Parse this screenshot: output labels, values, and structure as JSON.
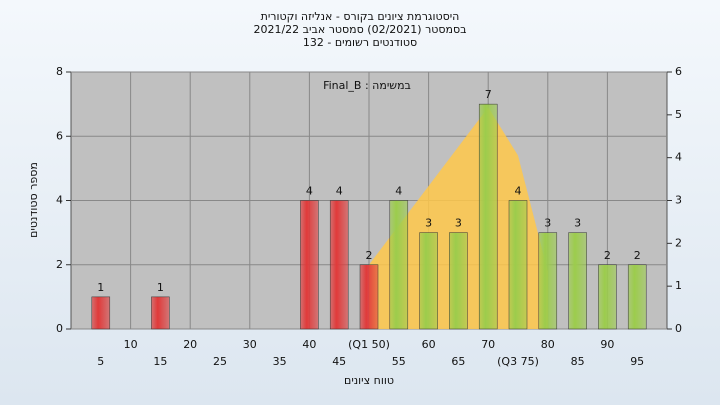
{
  "chart_data": {
    "type": "bar",
    "title": "היסטוגרמת ציונים בקורס - אנליזה וקטורית",
    "subtitle": "בסמסטר  (02/2021)  סמסטר אביב 2021/22",
    "subtitle2": "סטודנטים רשומים - 132",
    "annotation": "Final_B : במשימה",
    "x_label": "טווח ציונים",
    "y_label": "מספר סטודנטים",
    "categories": [
      "5",
      "10",
      "15",
      "20",
      "25",
      "30",
      "35",
      "40",
      "45",
      "(Q1 50)",
      "55",
      "60",
      "65",
      "70",
      "(Q3 75)",
      "80",
      "85",
      "90",
      "95"
    ],
    "values": [
      1,
      0,
      1,
      0,
      0,
      0,
      0,
      4,
      4,
      2,
      4,
      3,
      3,
      7,
      4,
      3,
      3,
      2,
      2
    ],
    "colors": [
      "#e03a3a",
      "#e03a3a",
      "#e03a3a",
      "#e03a3a",
      "#e03a3a",
      "#e03a3a",
      "#e03a3a",
      "#e03a3a",
      "#e03a3a",
      "#e03a3a",
      "#9ccc4c",
      "#9ccc4c",
      "#9ccc4c",
      "#9ccc4c",
      "#9ccc4c",
      "#9ccc4c",
      "#9ccc4c",
      "#9ccc4c",
      "#9ccc4c"
    ],
    "ylim": [
      0,
      8
    ],
    "yticks": [
      0,
      2,
      4,
      6,
      8
    ],
    "y2lim": [
      0,
      6
    ],
    "y2ticks": [
      0,
      1,
      2,
      3,
      4,
      5,
      6
    ],
    "grid": true,
    "overlay": {
      "color": "#ffc84a",
      "x": [
        9,
        13,
        14,
        15
      ],
      "values": [
        2,
        6.9,
        5.4,
        1.8
      ]
    }
  }
}
